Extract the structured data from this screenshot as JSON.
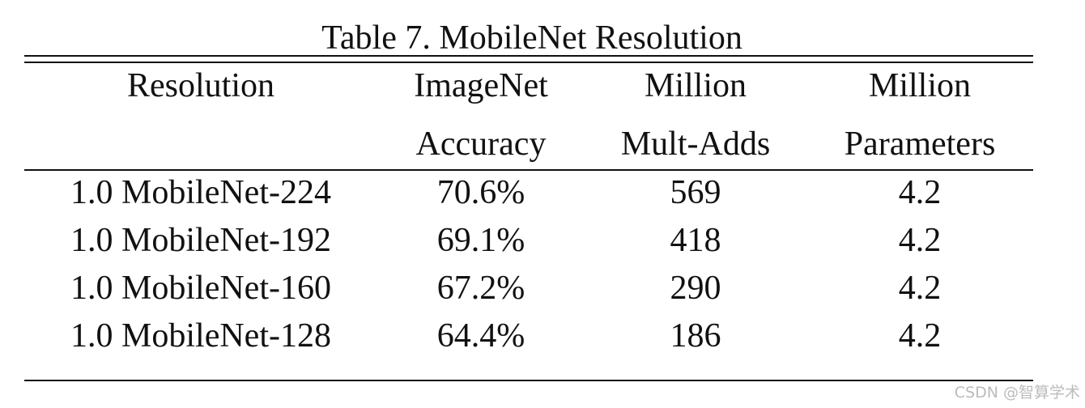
{
  "title": "Table 7. MobileNet Resolution",
  "table": {
    "header": [
      [
        "Resolution"
      ],
      [
        "ImageNet",
        "Accuracy"
      ],
      [
        "Million",
        "Mult-Adds"
      ],
      [
        "Million",
        "Parameters"
      ]
    ],
    "rows": [
      [
        "1.0 MobileNet-224",
        "70.6%",
        "569",
        "4.2"
      ],
      [
        "1.0 MobileNet-192",
        "69.1%",
        "418",
        "4.2"
      ],
      [
        "1.0 MobileNet-160",
        "67.2%",
        "290",
        "4.2"
      ],
      [
        "1.0 MobileNet-128",
        "64.4%",
        "186",
        "4.2"
      ]
    ]
  },
  "watermark": "CSDN @智算学术"
}
